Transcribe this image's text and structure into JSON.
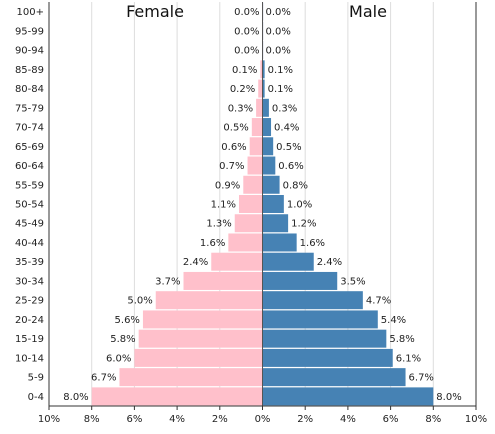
{
  "chart_data": {
    "type": "bar",
    "orientation": "horizontal",
    "layout": "population-pyramid",
    "categories": [
      "0-4",
      "5-9",
      "10-14",
      "15-19",
      "20-24",
      "25-29",
      "30-34",
      "35-39",
      "40-44",
      "45-49",
      "50-54",
      "55-59",
      "60-64",
      "65-69",
      "70-74",
      "75-79",
      "80-84",
      "85-89",
      "90-94",
      "95-99",
      "100+"
    ],
    "series": [
      {
        "name": "Female",
        "side": "left",
        "color": "#ffc0cb",
        "values": [
          8.0,
          6.7,
          6.0,
          5.8,
          5.6,
          5.0,
          3.7,
          2.4,
          1.6,
          1.3,
          1.1,
          0.9,
          0.7,
          0.6,
          0.5,
          0.3,
          0.2,
          0.1,
          0.0,
          0.0,
          0.0
        ],
        "labels": [
          "8.0%",
          "6.7%",
          "6.0%",
          "5.8%",
          "5.6%",
          "5.0%",
          "3.7%",
          "2.4%",
          "1.6%",
          "1.3%",
          "1.1%",
          "0.9%",
          "0.7%",
          "0.6%",
          "0.5%",
          "0.3%",
          "0.2%",
          "0.1%",
          "0.0%",
          "0.0%",
          "0.0%"
        ]
      },
      {
        "name": "Male",
        "side": "right",
        "color": "#4682b4",
        "values": [
          8.0,
          6.7,
          6.1,
          5.8,
          5.4,
          4.7,
          3.5,
          2.4,
          1.6,
          1.2,
          1.0,
          0.8,
          0.6,
          0.5,
          0.4,
          0.3,
          0.1,
          0.1,
          0.0,
          0.0,
          0.0
        ],
        "labels": [
          "8.0%",
          "6.7%",
          "6.1%",
          "5.8%",
          "5.4%",
          "4.7%",
          "3.5%",
          "2.4%",
          "1.6%",
          "1.2%",
          "1.0%",
          "0.8%",
          "0.6%",
          "0.5%",
          "0.4%",
          "0.3%",
          "0.1%",
          "0.1%",
          "0.0%",
          "0.0%",
          "0.0%"
        ]
      }
    ],
    "xlim": [
      -10,
      10
    ],
    "x_ticks": [
      -10,
      -8,
      -6,
      -4,
      -2,
      0,
      2,
      4,
      6,
      8,
      10
    ],
    "x_tick_labels": [
      "10%",
      "8%",
      "6%",
      "4%",
      "2%",
      "0%",
      "2%",
      "4%",
      "6%",
      "8%",
      "10%"
    ],
    "grid": true,
    "title": "",
    "xlabel": "",
    "ylabel": ""
  }
}
